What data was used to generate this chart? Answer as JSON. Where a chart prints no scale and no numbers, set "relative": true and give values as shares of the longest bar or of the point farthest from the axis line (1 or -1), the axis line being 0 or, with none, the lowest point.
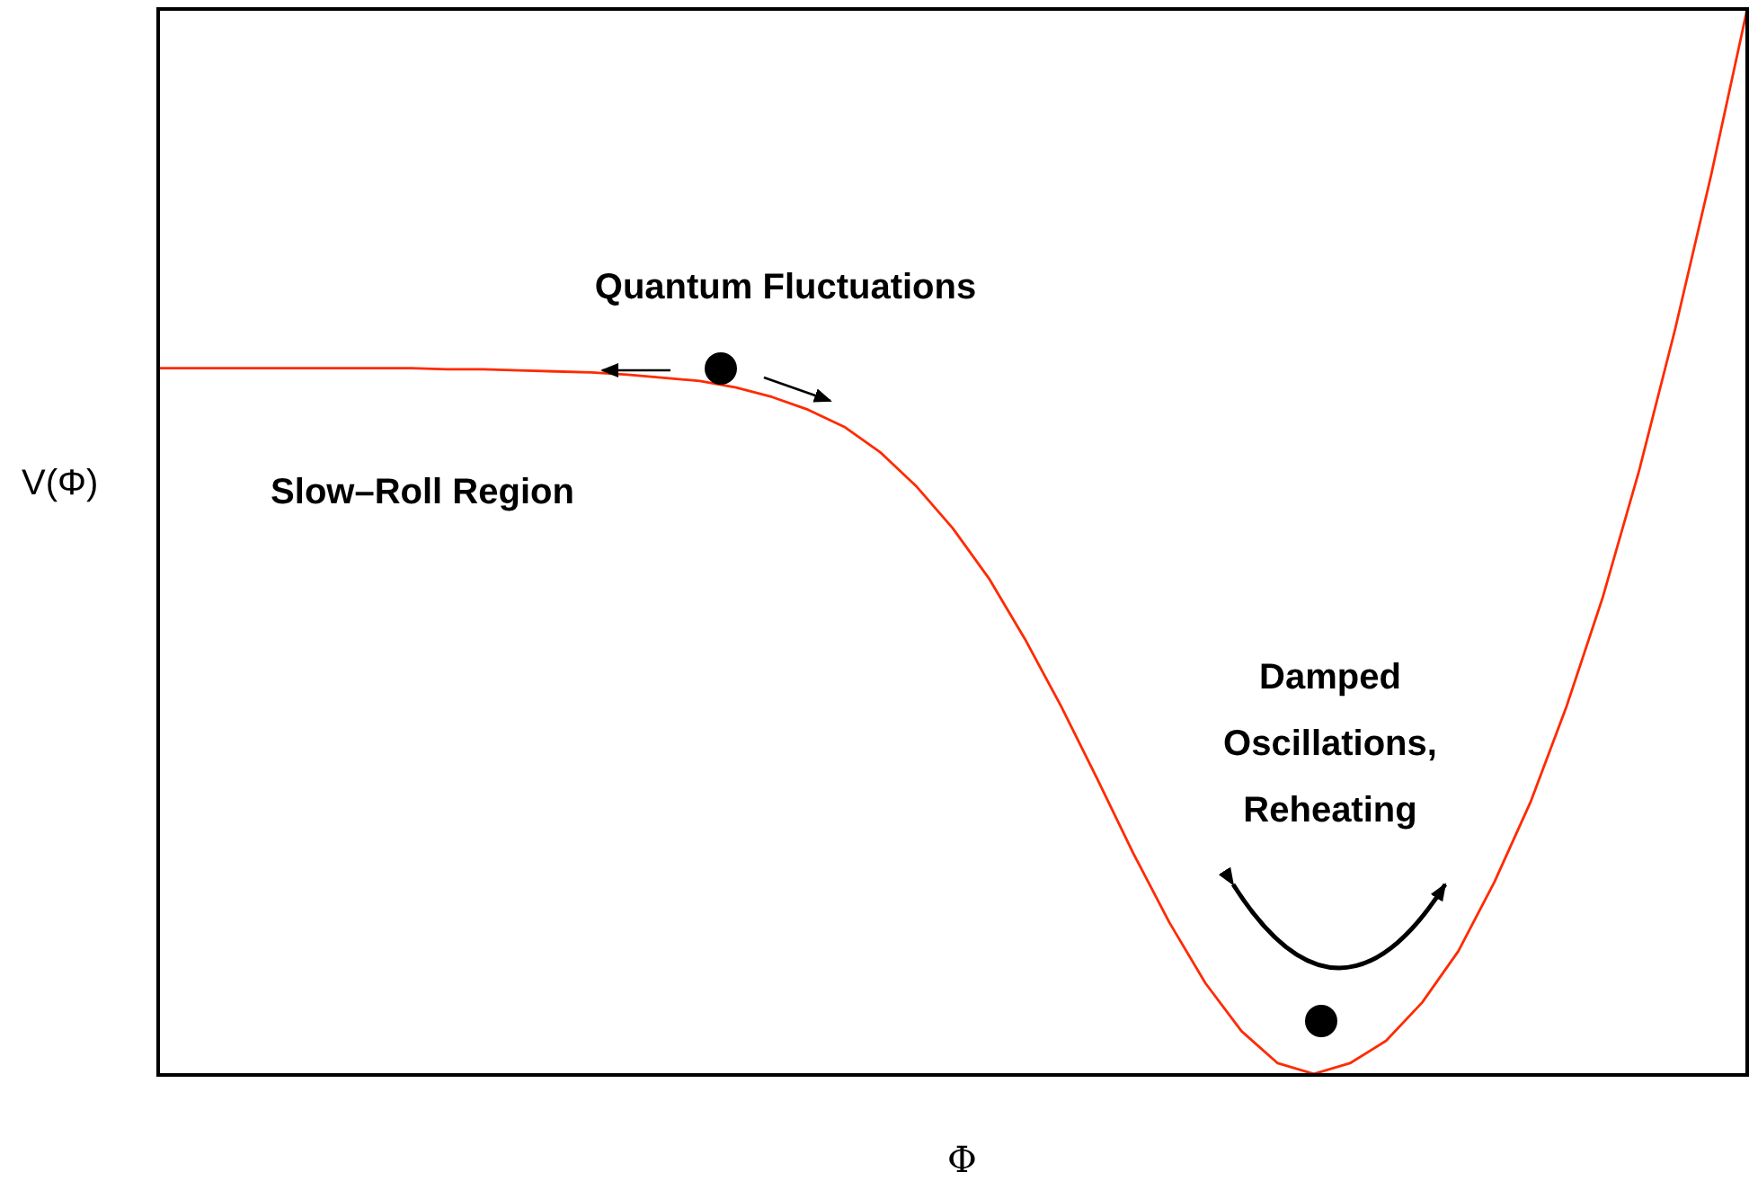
{
  "chart_data": {
    "type": "line",
    "relative": true,
    "xlabel": "Φ",
    "ylabel": "V(Φ)",
    "categories": [
      null,
      null,
      null,
      null,
      null,
      null,
      null,
      null,
      null,
      null,
      null,
      null,
      null,
      null,
      null,
      null,
      null,
      null,
      null,
      null,
      null,
      null,
      null,
      null,
      null,
      null,
      null,
      null,
      null,
      null,
      null,
      null,
      null,
      null,
      null,
      null,
      null,
      null,
      null,
      null,
      null,
      null,
      null,
      null,
      null
    ],
    "series": [
      {
        "color": "#ff2a00",
        "values": [
          0.663,
          0.663,
          0.663,
          0.663,
          0.663,
          0.663,
          0.663,
          0.663,
          0.662,
          0.662,
          0.661,
          0.66,
          0.659,
          0.657,
          0.654,
          0.651,
          0.645,
          0.636,
          0.624,
          0.608,
          0.584,
          0.552,
          0.513,
          0.466,
          0.409,
          0.346,
          0.278,
          0.208,
          0.143,
          0.086,
          0.041,
          0.011,
          0.001,
          0.011,
          0.032,
          0.068,
          0.116,
          0.181,
          0.256,
          0.346,
          0.448,
          0.566,
          0.699,
          0.844,
          1.0
        ]
      }
    ],
    "annotations": [
      "Quantum Fluctuations",
      "Slow–Roll Region",
      "Damped\nOscillations,\nReheating"
    ],
    "marker": "none",
    "line_style": "solid",
    "legend": false
  }
}
